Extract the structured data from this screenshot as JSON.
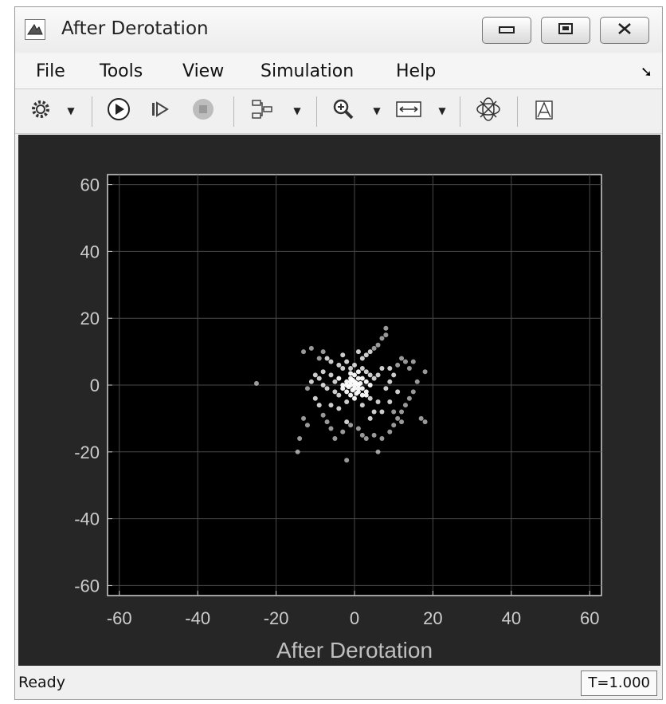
{
  "window": {
    "title": "After Derotation",
    "icon": "matlab-scope-icon"
  },
  "title_buttons": [
    {
      "name": "minimize",
      "glyph": "▭"
    },
    {
      "name": "maximize",
      "glyph": "▣"
    },
    {
      "name": "close",
      "glyph": "✕"
    }
  ],
  "menu": {
    "file": "File",
    "tools": "Tools",
    "view": "View",
    "simulation": "Simulation",
    "help": "Help",
    "dock_icon": "dock-arrow-icon"
  },
  "toolbar": {
    "icons": [
      "gear-icon",
      "run-icon",
      "step-forward-icon",
      "stop-icon",
      "signal-select-icon",
      "zoom-in-icon",
      "scale-axes-icon",
      "constellation-icon",
      "measurements-icon"
    ]
  },
  "status": {
    "text": "Ready",
    "time": "T=1.000"
  },
  "chart_data": {
    "type": "scatter",
    "title": "",
    "xlabel": "After Derotation",
    "ylabel": "",
    "xlim": [
      -63,
      63
    ],
    "ylim": [
      -63,
      63
    ],
    "xticks": [
      "-60",
      "-40",
      "-20",
      "0",
      "20",
      "40",
      "60"
    ],
    "yticks": [
      "60",
      "40",
      "20",
      "0",
      "-20",
      "-40",
      "-60"
    ],
    "xtick_values": [
      -60,
      -40,
      -20,
      0,
      20,
      40,
      60
    ],
    "ytick_values": [
      60,
      40,
      20,
      0,
      -20,
      -40,
      -60
    ],
    "grid": true,
    "background": "#000000",
    "marker_color": "#ffffff",
    "points": [
      [
        -25,
        0.5
      ],
      [
        -14,
        -16
      ],
      [
        -14.5,
        -20
      ],
      [
        -13,
        10
      ],
      [
        -11,
        11
      ],
      [
        -9,
        8
      ],
      [
        -8,
        10
      ],
      [
        -7,
        8
      ],
      [
        -6,
        7
      ],
      [
        -10,
        -4
      ],
      [
        -9,
        -6
      ],
      [
        -8,
        -9
      ],
      [
        -7,
        -11
      ],
      [
        -6,
        -13
      ],
      [
        -5,
        -16
      ],
      [
        -3,
        -14
      ],
      [
        -2,
        -11
      ],
      [
        -1,
        -12
      ],
      [
        1,
        -13
      ],
      [
        2,
        -15
      ],
      [
        3,
        -16
      ],
      [
        5,
        -15
      ],
      [
        6,
        -20
      ],
      [
        -2,
        -22.5
      ],
      [
        7,
        -16
      ],
      [
        9,
        -14
      ],
      [
        10,
        -12
      ],
      [
        11,
        -10
      ],
      [
        12,
        -8
      ],
      [
        13,
        -6
      ],
      [
        14,
        -4
      ],
      [
        15,
        -2
      ],
      [
        16,
        1
      ],
      [
        18,
        4
      ],
      [
        17,
        -10
      ],
      [
        18,
        -11
      ],
      [
        12,
        8
      ],
      [
        13,
        7
      ],
      [
        11,
        6
      ],
      [
        8,
        15
      ],
      [
        7,
        14
      ],
      [
        6,
        12
      ],
      [
        5,
        11
      ],
      [
        4,
        10
      ],
      [
        8,
        17
      ],
      [
        3,
        9
      ],
      [
        -4,
        6
      ],
      [
        -3,
        5
      ],
      [
        -2,
        7
      ],
      [
        -1,
        5
      ],
      [
        0,
        6
      ],
      [
        1,
        4
      ],
      [
        2,
        5
      ],
      [
        3,
        4
      ],
      [
        4,
        3
      ],
      [
        5,
        2
      ],
      [
        6,
        3
      ],
      [
        7,
        5
      ],
      [
        -6,
        3
      ],
      [
        -5,
        1
      ],
      [
        -4,
        2
      ],
      [
        -3,
        0
      ],
      [
        -2,
        1
      ],
      [
        -1,
        0
      ],
      [
        0,
        1
      ],
      [
        1,
        0
      ],
      [
        2,
        2
      ],
      [
        3,
        1
      ],
      [
        4,
        0
      ],
      [
        -5,
        -2
      ],
      [
        -4,
        -3
      ],
      [
        -3,
        -1
      ],
      [
        -2,
        -2
      ],
      [
        -1,
        -3
      ],
      [
        0,
        -1
      ],
      [
        1,
        -2
      ],
      [
        2,
        -3
      ],
      [
        3,
        -2
      ],
      [
        4,
        -4
      ],
      [
        -7,
        -1
      ],
      [
        -8,
        0
      ],
      [
        -9,
        2
      ],
      [
        -10,
        3
      ],
      [
        -11,
        1
      ],
      [
        -12,
        -1
      ],
      [
        8,
        -1
      ],
      [
        9,
        1
      ],
      [
        10,
        3
      ],
      [
        11,
        -2
      ],
      [
        -1,
        2
      ],
      [
        0,
        3
      ],
      [
        1,
        2
      ],
      [
        0,
        -4
      ],
      [
        -2,
        -5
      ],
      [
        2,
        -6
      ],
      [
        -4,
        -7
      ],
      [
        5,
        -8
      ],
      [
        -6,
        -6
      ],
      [
        6,
        -5
      ],
      [
        9,
        -5
      ],
      [
        10,
        -8
      ],
      [
        -3,
        9
      ],
      [
        2,
        8
      ],
      [
        1,
        10
      ],
      [
        -1,
        3.5
      ],
      [
        0.5,
        -2.5
      ],
      [
        -0.5,
        1.5
      ],
      [
        1.5,
        0.5
      ],
      [
        -1.5,
        -0.5
      ],
      [
        0.5,
        0.5
      ],
      [
        -0.5,
        -1.5
      ],
      [
        1,
        -1
      ],
      [
        -1,
        1
      ],
      [
        0,
        0
      ],
      [
        2,
        -1
      ],
      [
        -2,
        0
      ],
      [
        3,
        -3
      ],
      [
        14,
        5
      ],
      [
        15,
        7
      ],
      [
        -13,
        -10
      ],
      [
        -12,
        -12
      ],
      [
        7,
        -8
      ],
      [
        12,
        -11
      ],
      [
        4,
        -10
      ],
      [
        -8,
        4
      ],
      [
        9,
        5
      ]
    ]
  }
}
